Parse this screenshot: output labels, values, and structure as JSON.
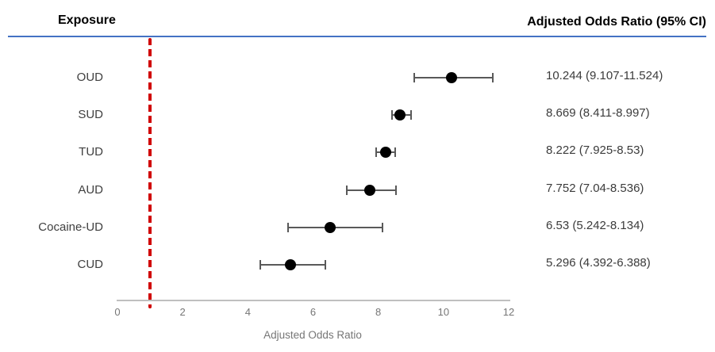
{
  "header": {
    "left_title": "Exposure",
    "right_title": "Adjusted Odds Ratio (95% CI)"
  },
  "chart_data": {
    "type": "scatter",
    "variant": "forest-plot",
    "xlabel": "Adjusted Odds Ratio",
    "xlim": [
      0,
      12
    ],
    "xticks": [
      0,
      2,
      4,
      6,
      8,
      10,
      12
    ],
    "reference_line_x": 1,
    "grid": "off",
    "rows": [
      {
        "label": "OUD",
        "or": 10.244,
        "ci_low": 9.107,
        "ci_high": 11.524,
        "ci_text": "10.244 (9.107-11.524)"
      },
      {
        "label": "SUD",
        "or": 8.669,
        "ci_low": 8.411,
        "ci_high": 8.997,
        "ci_text": "8.669 (8.411-8.997)"
      },
      {
        "label": "TUD",
        "or": 8.222,
        "ci_low": 7.925,
        "ci_high": 8.53,
        "ci_text": "8.222 (7.925-8.53)"
      },
      {
        "label": "AUD",
        "or": 7.752,
        "ci_low": 7.04,
        "ci_high": 8.536,
        "ci_text": "7.752 (7.04-8.536)"
      },
      {
        "label": "Cocaine-UD",
        "or": 6.53,
        "ci_low": 5.242,
        "ci_high": 8.134,
        "ci_text": "6.53 (5.242-8.134)"
      },
      {
        "label": "CUD",
        "or": 5.296,
        "ci_low": 4.392,
        "ci_high": 6.388,
        "ci_text": "5.296 (4.392-6.388)"
      }
    ],
    "colors": {
      "marker": "#000000",
      "error_bar": "#595959",
      "reference_line": "#D00000",
      "header_rule": "#4472C4",
      "axis_line": "#BFBFBF",
      "axis_text": "#767676",
      "row_label_text": "#404040",
      "value_text": "#3B3B3B"
    }
  }
}
